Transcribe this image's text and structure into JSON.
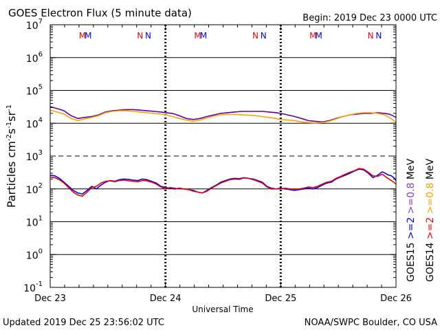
{
  "chart_data": {
    "type": "line",
    "title": "GOES Electron Flux (5 minute data)",
    "begin_label": "Begin: 2019 Dec 23 0000 UTC",
    "ylabel_parts": [
      "Particles cm",
      "-2",
      "s",
      "-1",
      "sr",
      "-1"
    ],
    "xlabel": "Universal Time",
    "footer_left": "Updated 2019 Dec 25 23:56:02 UTC",
    "footer_right": "NOAA/SWPC Boulder, CO USA",
    "y_scale": "log",
    "ylim_exponent": [
      -1,
      7
    ],
    "y_ticks": [
      {
        "exp": -1,
        "base": "10",
        "sup": "-1"
      },
      {
        "exp": 0,
        "base": "10",
        "sup": "0"
      },
      {
        "exp": 1,
        "base": "10",
        "sup": "1"
      },
      {
        "exp": 2,
        "base": "10",
        "sup": "2"
      },
      {
        "exp": 3,
        "base": "10",
        "sup": "3"
      },
      {
        "exp": 4,
        "base": "10",
        "sup": "4"
      },
      {
        "exp": 5,
        "base": "10",
        "sup": "5"
      },
      {
        "exp": 6,
        "base": "10",
        "sup": "6"
      },
      {
        "exp": 7,
        "base": "10",
        "sup": "7"
      }
    ],
    "dashed_gridline_exponent": 3,
    "xlim_days": [
      0,
      3
    ],
    "x_ticks": [
      {
        "day": 0,
        "label": "Dec 23"
      },
      {
        "day": 1,
        "label": "Dec 24"
      },
      {
        "day": 2,
        "label": "Dec 25"
      },
      {
        "day": 3,
        "label": "Dec 26"
      }
    ],
    "markers": [
      {
        "label": "M",
        "day": 0.28,
        "color": "#ee0000"
      },
      {
        "label": "M",
        "day": 0.33,
        "color": "#0000ee"
      },
      {
        "label": "N",
        "day": 0.78,
        "color": "#ee0000"
      },
      {
        "label": "N",
        "day": 0.85,
        "color": "#0000ee"
      },
      {
        "label": "M",
        "day": 1.28,
        "color": "#ee0000"
      },
      {
        "label": "M",
        "day": 1.33,
        "color": "#0000ee"
      },
      {
        "label": "N",
        "day": 1.78,
        "color": "#ee0000"
      },
      {
        "label": "N",
        "day": 1.85,
        "color": "#0000ee"
      },
      {
        "label": "M",
        "day": 2.28,
        "color": "#ee0000"
      },
      {
        "label": "M",
        "day": 2.33,
        "color": "#0000ee"
      },
      {
        "label": "N",
        "day": 2.78,
        "color": "#ee0000"
      },
      {
        "label": "N",
        "day": 2.85,
        "color": "#0000ee"
      }
    ],
    "legend": [
      {
        "label": "GOES15",
        "color": "#000000"
      },
      {
        "label": ">=2",
        "color": "#0000ee"
      },
      {
        "label": ">=0.8",
        "color": "#7f3fbf"
      },
      {
        "label": "MeV",
        "color": "#000000"
      },
      {
        "label": "GOES14",
        "color": "#000000"
      },
      {
        "label": ">=2",
        "color": "#ee0000"
      },
      {
        "label": ">=0.8",
        "color": "#ffa000"
      },
      {
        "label": "MeV",
        "color": "#000000"
      }
    ],
    "series": [
      {
        "name": "GOES15 >=0.8 MeV",
        "color": "#5c00a0",
        "x": [
          0,
          0.06,
          0.12,
          0.18,
          0.24,
          0.3,
          0.36,
          0.42,
          0.48,
          0.54,
          0.6,
          0.66,
          0.72,
          0.78,
          0.84,
          0.9,
          0.96,
          1.0,
          1.06,
          1.12,
          1.18,
          1.24,
          1.3,
          1.36,
          1.42,
          1.48,
          1.54,
          1.6,
          1.66,
          1.72,
          1.78,
          1.84,
          1.9,
          1.96,
          2.0,
          2.06,
          2.12,
          2.18,
          2.24,
          2.3,
          2.36,
          2.42,
          2.48,
          2.54,
          2.6,
          2.66,
          2.72,
          2.78,
          2.84,
          2.9,
          2.94,
          2.97,
          3.0
        ],
        "y": [
          32000,
          28000,
          24000,
          17000,
          14000,
          15000,
          16000,
          18000,
          22000,
          24000,
          25000,
          26000,
          26000,
          25000,
          24000,
          23000,
          22000,
          21000,
          20000,
          17000,
          14000,
          13000,
          14000,
          16000,
          18000,
          20000,
          21000,
          22000,
          23000,
          23000,
          23000,
          23000,
          22000,
          21000,
          20000,
          18000,
          16000,
          14000,
          12000,
          11500,
          11000,
          12000,
          14000,
          16000,
          18000,
          19000,
          20000,
          20000,
          21000,
          20000,
          19000,
          17000,
          15000
        ]
      },
      {
        "name": "GOES14 >=0.8 MeV",
        "color": "#ffa000",
        "x": [
          0,
          0.06,
          0.12,
          0.18,
          0.24,
          0.3,
          0.36,
          0.42,
          0.48,
          0.54,
          0.6,
          0.66,
          0.72,
          0.78,
          0.84,
          0.9,
          0.96,
          1.0,
          1.06,
          1.12,
          1.18,
          1.24,
          1.3,
          1.36,
          1.42,
          1.48,
          1.54,
          1.6,
          1.66,
          1.72,
          1.78,
          1.84,
          1.9,
          1.96,
          2.0,
          2.06,
          2.12,
          2.18,
          2.24,
          2.3,
          2.36,
          2.42,
          2.48,
          2.54,
          2.6,
          2.66,
          2.72,
          2.78,
          2.84,
          2.9,
          2.94,
          2.97,
          3.0
        ],
        "y": [
          25000,
          22000,
          19000,
          14000,
          12000,
          13500,
          15000,
          17000,
          21000,
          23000,
          24000,
          24000,
          23000,
          22000,
          21000,
          20000,
          19000,
          18000,
          16000,
          14000,
          12500,
          11500,
          12500,
          14500,
          16500,
          18000,
          18500,
          18500,
          18000,
          17500,
          17000,
          16000,
          15000,
          14000,
          13000,
          12500,
          12000,
          11000,
          10500,
          10200,
          10500,
          11500,
          13500,
          16000,
          18000,
          20000,
          21000,
          21000,
          20000,
          18000,
          15000,
          13000,
          10500
        ]
      },
      {
        "name": "GOES15 >=2 MeV",
        "color": "#0000ee",
        "x": [
          0,
          0.04,
          0.08,
          0.12,
          0.16,
          0.2,
          0.24,
          0.28,
          0.32,
          0.36,
          0.4,
          0.44,
          0.48,
          0.52,
          0.56,
          0.6,
          0.64,
          0.68,
          0.72,
          0.76,
          0.8,
          0.84,
          0.88,
          0.92,
          0.96,
          1.0,
          1.04,
          1.08,
          1.12,
          1.16,
          1.2,
          1.24,
          1.28,
          1.32,
          1.36,
          1.4,
          1.44,
          1.48,
          1.52,
          1.56,
          1.6,
          1.64,
          1.68,
          1.72,
          1.76,
          1.8,
          1.84,
          1.88,
          1.92,
          1.96,
          2.0,
          2.04,
          2.08,
          2.12,
          2.16,
          2.2,
          2.24,
          2.28,
          2.32,
          2.36,
          2.4,
          2.44,
          2.48,
          2.52,
          2.56,
          2.6,
          2.64,
          2.68,
          2.72,
          2.76,
          2.8,
          2.84,
          2.88,
          2.9,
          2.92,
          2.94,
          2.96,
          2.98,
          3.0
        ],
        "y": [
          260,
          250,
          210,
          160,
          120,
          90,
          75,
          70,
          90,
          120,
          100,
          130,
          160,
          180,
          170,
          190,
          200,
          195,
          185,
          180,
          200,
          190,
          170,
          150,
          120,
          110,
          105,
          100,
          105,
          100,
          95,
          90,
          80,
          75,
          90,
          110,
          130,
          160,
          180,
          200,
          210,
          205,
          220,
          210,
          200,
          180,
          160,
          120,
          105,
          100,
          105,
          100,
          95,
          90,
          95,
          100,
          105,
          100,
          110,
          130,
          150,
          160,
          200,
          230,
          260,
          300,
          350,
          400,
          380,
          300,
          220,
          260,
          330,
          310,
          280,
          260,
          250,
          220,
          180
        ]
      },
      {
        "name": "GOES14 >=2 MeV",
        "color": "#ee0000",
        "x": [
          0,
          0.04,
          0.08,
          0.12,
          0.16,
          0.2,
          0.24,
          0.28,
          0.32,
          0.36,
          0.4,
          0.44,
          0.48,
          0.52,
          0.56,
          0.6,
          0.64,
          0.68,
          0.72,
          0.76,
          0.8,
          0.84,
          0.88,
          0.92,
          0.96,
          1.0,
          1.04,
          1.08,
          1.12,
          1.16,
          1.2,
          1.24,
          1.28,
          1.32,
          1.36,
          1.4,
          1.44,
          1.48,
          1.52,
          1.56,
          1.6,
          1.64,
          1.68,
          1.72,
          1.76,
          1.8,
          1.84,
          1.88,
          1.92,
          1.96,
          2.0,
          2.04,
          2.08,
          2.12,
          2.16,
          2.2,
          2.24,
          2.28,
          2.32,
          2.36,
          2.4,
          2.44,
          2.48,
          2.52,
          2.56,
          2.6,
          2.64,
          2.68,
          2.72,
          2.76,
          2.8,
          2.84,
          2.88,
          2.9,
          2.92,
          2.94,
          2.96,
          2.98,
          3.0
        ],
        "y": [
          230,
          220,
          190,
          150,
          110,
          80,
          65,
          60,
          80,
          110,
          120,
          150,
          170,
          175,
          165,
          180,
          185,
          175,
          170,
          165,
          180,
          175,
          160,
          140,
          115,
          100,
          110,
          105,
          100,
          100,
          95,
          85,
          80,
          75,
          85,
          105,
          125,
          150,
          170,
          190,
          200,
          195,
          215,
          210,
          190,
          170,
          150,
          115,
          100,
          100,
          100,
          105,
          100,
          95,
          100,
          105,
          115,
          110,
          120,
          140,
          160,
          170,
          210,
          240,
          280,
          320,
          360,
          420,
          400,
          320,
          250,
          240,
          280,
          250,
          220,
          200,
          180,
          160,
          140
        ]
      }
    ]
  }
}
